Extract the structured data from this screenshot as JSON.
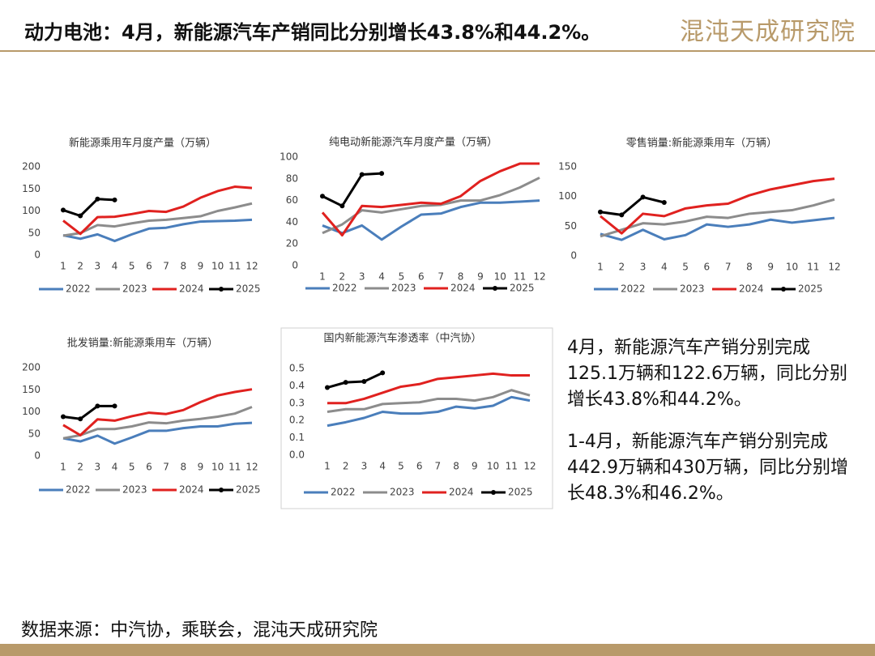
{
  "header": {
    "title": "动力电池：4月，新能源汽车产销同比分别增长43.8%和44.2%。",
    "logo": "混沌天成研究院"
  },
  "notes": [
    "4月，新能源汽车产销分别完成125.1万辆和122.6万辆，同比分别增长43.8%和44.2%。",
    "1-4月，新能源汽车产销分别完成442.9万辆和430万辆，同比分别增长48.3%和46.2%。"
  ],
  "footer": {
    "source": "数据来源：中汽协，乘联会，混沌天成研究院"
  },
  "chart_data": [
    {
      "type": "line",
      "title": "新能源乘用车月度产量（万辆）",
      "categories": [
        "1",
        "2",
        "3",
        "4",
        "5",
        "6",
        "7",
        "8",
        "9",
        "10",
        "11",
        "12"
      ],
      "ylim": [
        0,
        200
      ],
      "yticks": [
        0,
        50,
        100,
        150,
        200
      ],
      "series": [
        {
          "name": "2022",
          "color": "#4a7ebb",
          "values": [
            45,
            37,
            47,
            32,
            47,
            60,
            62,
            70,
            76,
            77,
            78,
            80
          ]
        },
        {
          "name": "2023",
          "color": "#8c8c8c",
          "values": [
            44,
            50,
            68,
            65,
            72,
            78,
            80,
            84,
            88,
            100,
            108,
            117
          ]
        },
        {
          "name": "2024",
          "color": "#e0211f",
          "values": [
            78,
            48,
            86,
            87,
            93,
            100,
            98,
            110,
            130,
            145,
            155,
            152
          ]
        },
        {
          "name": "2025",
          "color": "#000000",
          "values": [
            102,
            89,
            127,
            125,
            null,
            null,
            null,
            null,
            null,
            null,
            null,
            null
          ]
        }
      ]
    },
    {
      "type": "line",
      "title": "纯电动新能源汽车月度产量（万辆）",
      "categories": [
        "1",
        "2",
        "3",
        "4",
        "5",
        "6",
        "7",
        "8",
        "9",
        "10",
        "11",
        "12"
      ],
      "ylim": [
        0,
        100
      ],
      "yticks": [
        0,
        20,
        40,
        60,
        80,
        100
      ],
      "series": [
        {
          "name": "2022",
          "color": "#4a7ebb",
          "values": [
            37,
            30,
            37,
            24,
            36,
            47,
            48,
            54,
            58,
            58,
            59,
            60
          ]
        },
        {
          "name": "2023",
          "color": "#8c8c8c",
          "values": [
            30,
            38,
            51,
            49,
            52,
            55,
            56,
            60,
            60,
            65,
            72,
            81
          ]
        },
        {
          "name": "2024",
          "color": "#e0211f",
          "values": [
            49,
            28,
            55,
            54,
            56,
            58,
            57,
            64,
            78,
            87,
            94,
            94
          ]
        },
        {
          "name": "2025",
          "color": "#000000",
          "values": [
            64,
            55,
            84,
            85,
            null,
            null,
            null,
            null,
            null,
            null,
            null,
            null
          ]
        }
      ]
    },
    {
      "type": "line",
      "title": "零售销量:新能源乘用车（万辆）",
      "categories": [
        "1",
        "2",
        "3",
        "4",
        "5",
        "6",
        "7",
        "8",
        "9",
        "10",
        "11",
        "12"
      ],
      "ylim": [
        0,
        150
      ],
      "yticks": [
        0,
        50,
        100,
        150
      ],
      "series": [
        {
          "name": "2022",
          "color": "#4a7ebb",
          "values": [
            37,
            27,
            44,
            28,
            35,
            53,
            49,
            53,
            61,
            56,
            60,
            64
          ]
        },
        {
          "name": "2023",
          "color": "#8c8c8c",
          "values": [
            33,
            44,
            55,
            53,
            58,
            66,
            64,
            71,
            74,
            77,
            85,
            95
          ]
        },
        {
          "name": "2024",
          "color": "#e0211f",
          "values": [
            67,
            38,
            71,
            67,
            80,
            85,
            88,
            102,
            112,
            119,
            126,
            130
          ]
        },
        {
          "name": "2025",
          "color": "#000000",
          "values": [
            74,
            69,
            99,
            90,
            null,
            null,
            null,
            null,
            null,
            null,
            null,
            null
          ]
        }
      ]
    },
    {
      "type": "line",
      "title": "批发销量:新能源乘用车（万辆）",
      "categories": [
        "1",
        "2",
        "3",
        "4",
        "5",
        "6",
        "7",
        "8",
        "9",
        "10",
        "11",
        "12"
      ],
      "ylim": [
        0,
        200
      ],
      "yticks": [
        0,
        50,
        100,
        150,
        200
      ],
      "series": [
        {
          "name": "2022",
          "color": "#4a7ebb",
          "values": [
            40,
            33,
            46,
            28,
            42,
            57,
            57,
            63,
            67,
            67,
            73,
            75
          ]
        },
        {
          "name": "2023",
          "color": "#8c8c8c",
          "values": [
            40,
            47,
            61,
            61,
            67,
            76,
            74,
            80,
            84,
            89,
            96,
            111
          ]
        },
        {
          "name": "2024",
          "color": "#e0211f",
          "values": [
            70,
            47,
            83,
            80,
            90,
            98,
            95,
            104,
            122,
            137,
            145,
            151
          ]
        },
        {
          "name": "2025",
          "color": "#000000",
          "values": [
            89,
            84,
            113,
            113,
            null,
            null,
            null,
            null,
            null,
            null,
            null,
            null
          ]
        }
      ]
    },
    {
      "type": "line",
      "title": "国内新能源汽车渗透率（中汽协）",
      "categories": [
        "1",
        "2",
        "3",
        "4",
        "5",
        "6",
        "7",
        "8",
        "9",
        "10",
        "11",
        "12"
      ],
      "ylim": [
        0,
        0.5
      ],
      "yticks": [
        {
          "value": 0,
          "label": "0.0"
        },
        0.1,
        0.2,
        0.3,
        0.4,
        0.5
      ],
      "series": [
        {
          "name": "2022",
          "color": "#4a7ebb",
          "values": [
            0.17,
            0.19,
            0.215,
            0.25,
            0.24,
            0.24,
            0.25,
            0.28,
            0.27,
            0.285,
            0.335,
            0.315
          ]
        },
        {
          "name": "2023",
          "color": "#8c8c8c",
          "values": [
            0.25,
            0.265,
            0.265,
            0.295,
            0.3,
            0.305,
            0.325,
            0.325,
            0.315,
            0.335,
            0.375,
            0.345
          ]
        },
        {
          "name": "2024",
          "color": "#e0211f",
          "values": [
            0.3,
            0.3,
            0.325,
            0.36,
            0.395,
            0.41,
            0.44,
            0.45,
            0.46,
            0.47,
            0.46,
            0.46
          ]
        },
        {
          "name": "2025",
          "color": "#000000",
          "values": [
            0.39,
            0.42,
            0.425,
            0.475,
            null,
            null,
            null,
            null,
            null,
            null,
            null,
            null
          ]
        }
      ]
    }
  ]
}
